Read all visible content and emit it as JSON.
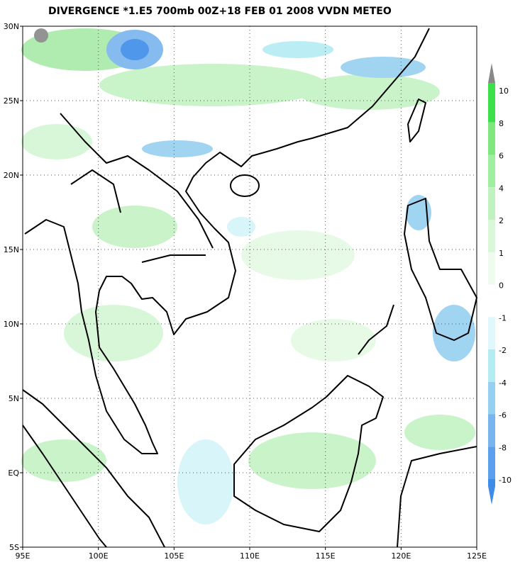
{
  "title": "DIVERGENCE *1.E5 700mb 00Z+18 FEB 01 2008 VVDN METEO",
  "lat_labels": [
    "30N",
    "25N",
    "20N",
    "15N",
    "10N",
    "5N",
    "EQ",
    "5S"
  ],
  "lon_labels": [
    "95E",
    "100E",
    "105E",
    "110E",
    "115E",
    "120E",
    "125E"
  ],
  "colorbar_labels": [
    "10",
    "8",
    "6",
    "4",
    "2",
    "1",
    "0",
    "-1",
    "-2",
    "-4",
    "-6",
    "-8",
    "-10"
  ]
}
